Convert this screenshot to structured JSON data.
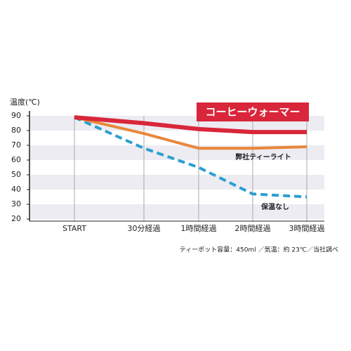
{
  "chart_data": {
    "type": "line",
    "y_label": "温度(℃)",
    "categories": [
      "START",
      "30分経過",
      "1時間経過",
      "2時間経過",
      "3時間経過"
    ],
    "series": [
      {
        "name": "コーヒーウォーマー",
        "color": "#d9263a",
        "dashed": false,
        "values": [
          89,
          85,
          81,
          79,
          79
        ]
      },
      {
        "name": "弊社ティーライト",
        "color": "#e8873a",
        "dashed": false,
        "values": [
          89,
          78,
          68,
          68,
          69
        ]
      },
      {
        "name": "保温なし",
        "color": "#2a9fd0",
        "dashed": true,
        "values": [
          89,
          68,
          55,
          37,
          35
        ]
      }
    ],
    "ylim": [
      20,
      90
    ],
    "yticks": [
      90,
      80,
      70,
      60,
      50,
      40,
      30,
      20
    ],
    "grid": true,
    "note": "ティーポット容量：450ml ／気温：約 23℃／当社調べ"
  }
}
